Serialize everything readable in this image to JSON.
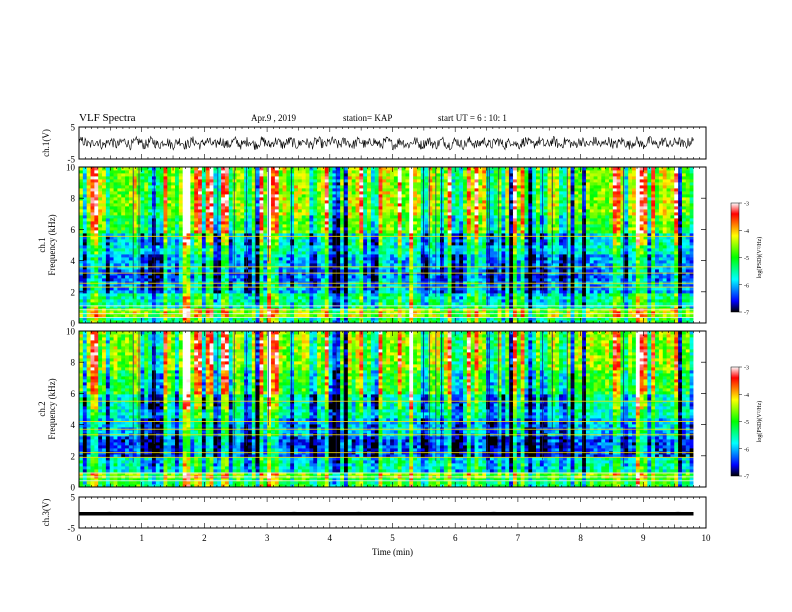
{
  "header": {
    "title": "VLF Spectra",
    "date": "Apr.9 , 2019",
    "station": "station= KAP",
    "start": "start UT = 6 : 10: 1"
  },
  "chart_data": [
    {
      "type": "line",
      "panel": "ch1-waveform",
      "ylabel": "ch.1(V)",
      "ylim": [
        -5,
        5
      ],
      "yticks": [
        "5",
        "-5"
      ],
      "xlim": [
        0,
        10
      ],
      "x_end": 9.8,
      "series": [
        {
          "values_range": [
            -2.0,
            2.0
          ]
        }
      ]
    },
    {
      "type": "heatmap",
      "panel": "ch1-spectrogram",
      "ylabel": "ch.1\nFrequency (kHz)",
      "ylabel_lines": [
        "ch.1",
        "Frequency (kHz)"
      ],
      "ylim": [
        0,
        10
      ],
      "yticks": [
        "0",
        "2",
        "4",
        "6",
        "8",
        "10"
      ],
      "xlim": [
        0,
        10
      ],
      "x_end": 9.8,
      "colorbar": {
        "label": "log(PSD)(V²/Hz)",
        "ticks": [
          "-3",
          "-4",
          "-5",
          "-6",
          "-7"
        ],
        "range": [
          -7,
          -3
        ],
        "colors": [
          "#000000",
          "#0000ff",
          "#00ffff",
          "#00ff00",
          "#ffff00",
          "#ff0000",
          "#ffffff"
        ]
      },
      "bands": [
        {
          "from": 0.0,
          "to": 0.4,
          "level": -5.2
        },
        {
          "from": 0.4,
          "to": 1.0,
          "level": -4.4
        },
        {
          "from": 1.0,
          "to": 2.0,
          "level": -5.4
        },
        {
          "from": 2.0,
          "to": 2.6,
          "level": -6.0
        },
        {
          "from": 2.6,
          "to": 3.4,
          "level": -6.2
        },
        {
          "from": 3.4,
          "to": 4.4,
          "level": -6.0
        },
        {
          "from": 4.4,
          "to": 5.8,
          "level": -5.6
        },
        {
          "from": 5.8,
          "to": 7.0,
          "level": -4.8
        },
        {
          "from": 7.0,
          "to": 10.0,
          "level": -4.5
        }
      ],
      "lines_khz": [
        0.35,
        0.6,
        0.85,
        1.1,
        2.3,
        2.55,
        3.2,
        3.6,
        5.55
      ]
    },
    {
      "type": "heatmap",
      "panel": "ch2-spectrogram",
      "ylabel": "ch.2\nFrequency (kHz)",
      "ylabel_lines": [
        "ch.2",
        "Frequency (kHz)"
      ],
      "ylim": [
        0,
        10
      ],
      "yticks": [
        "0",
        "2",
        "4",
        "6",
        "8",
        "10"
      ],
      "xlim": [
        0,
        10
      ],
      "x_end": 9.8,
      "colorbar": {
        "label": "log(PSD)(V²/Hz)",
        "ticks": [
          "-3",
          "-4",
          "-5",
          "-6",
          "-7"
        ],
        "range": [
          -7,
          -3
        ],
        "colors": [
          "#000000",
          "#0000ff",
          "#00ffff",
          "#00ff00",
          "#ffff00",
          "#ff0000",
          "#ffffff"
        ]
      },
      "bands": [
        {
          "from": 0.0,
          "to": 0.5,
          "level": -5.0
        },
        {
          "from": 0.5,
          "to": 1.0,
          "level": -4.6
        },
        {
          "from": 1.0,
          "to": 2.0,
          "level": -5.6
        },
        {
          "from": 2.0,
          "to": 3.3,
          "level": -6.4
        },
        {
          "from": 3.3,
          "to": 4.5,
          "level": -6.0
        },
        {
          "from": 4.5,
          "to": 6.0,
          "level": -5.6
        },
        {
          "from": 6.0,
          "to": 7.5,
          "level": -5.0
        },
        {
          "from": 7.5,
          "to": 10.0,
          "level": -4.6
        }
      ],
      "lines_khz": [
        0.4,
        0.65,
        0.9,
        1.9,
        2.2,
        3.35,
        3.7,
        4.2,
        5.5
      ]
    },
    {
      "type": "line",
      "panel": "ch3-waveform",
      "ylabel": "ch.3(V)",
      "ylim": [
        -5,
        5
      ],
      "yticks": [
        "5",
        "-5"
      ],
      "xlim": [
        0,
        10
      ],
      "x_end": 9.8,
      "series": [
        {
          "values_range": [
            -0.3,
            0.3
          ]
        }
      ]
    }
  ],
  "xaxis": {
    "label": "Time (min)",
    "ticks": [
      "0",
      "1",
      "2",
      "3",
      "4",
      "5",
      "6",
      "7",
      "8",
      "9",
      "10"
    ]
  }
}
